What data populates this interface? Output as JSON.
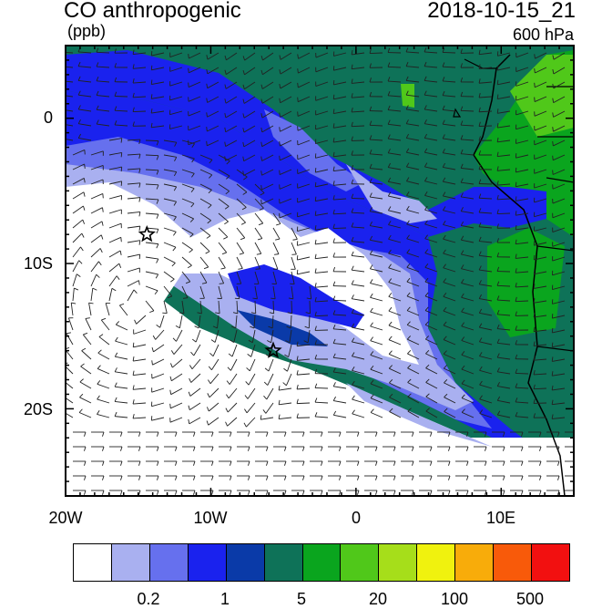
{
  "title": "CO anthropogenic",
  "units": "(ppb)",
  "datetime": "2018-10-15_21",
  "level": "600 hPa",
  "axes": {
    "lat_labels": [
      "0",
      "10S",
      "20S"
    ],
    "lon_labels": [
      "20W",
      "10W",
      "0",
      "10E"
    ]
  },
  "colorbar": {
    "colors": [
      "#ffffff",
      "#a9b0f0",
      "#6670ee",
      "#1a22ee",
      "#0a3aa8",
      "#0e7258",
      "#0aa51e",
      "#50c81a",
      "#a6de1a",
      "#f0f20e",
      "#f8ac0a",
      "#f85a0a",
      "#f21010"
    ],
    "labels": [
      "0.2",
      "1",
      "5",
      "20",
      "100",
      "500"
    ]
  },
  "markers": {
    "stars": [
      {
        "lon": -14.4,
        "lat": -8.0
      },
      {
        "lon": -5.7,
        "lat": -16.0
      }
    ]
  }
}
